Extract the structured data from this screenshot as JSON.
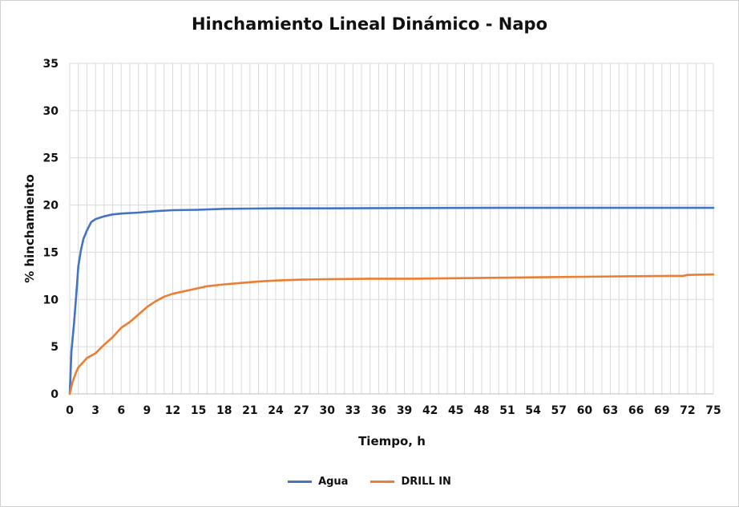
{
  "chart_data": {
    "type": "line",
    "title": "Hinchamiento Lineal Dinámico - Napo",
    "xlabel": "Tiempo, h",
    "ylabel": "% hinchamiento",
    "xlim": [
      0,
      75
    ],
    "ylim": [
      0,
      35
    ],
    "x_ticks": [
      "0",
      "3",
      "6",
      "9",
      "12",
      "15",
      "18",
      "21",
      "24",
      "27",
      "30",
      "33",
      "36",
      "39",
      "42",
      "45",
      "48",
      "51",
      "54",
      "57",
      "60",
      "63",
      "66",
      "69",
      "72",
      "75"
    ],
    "y_ticks": [
      "0",
      "5",
      "10",
      "15",
      "20",
      "25",
      "30",
      "35"
    ],
    "grid": true,
    "legend_position": "bottom",
    "series": [
      {
        "name": "Agua",
        "color": "#4472C4",
        "x": [
          0,
          0.2,
          0.5,
          0.8,
          1.0,
          1.3,
          1.6,
          2.0,
          2.5,
          3,
          4,
          5,
          6,
          8,
          10,
          12,
          15,
          18,
          21,
          24,
          30,
          40,
          50,
          60,
          70,
          75
        ],
        "y": [
          0,
          4.5,
          7.5,
          11,
          13.5,
          15.2,
          16.4,
          17.3,
          18.2,
          18.5,
          18.8,
          19.0,
          19.1,
          19.2,
          19.35,
          19.45,
          19.5,
          19.6,
          19.62,
          19.65,
          19.65,
          19.68,
          19.7,
          19.7,
          19.7,
          19.7
        ]
      },
      {
        "name": "DRILL IN",
        "color": "#ED7D31",
        "x": [
          0,
          0.3,
          0.7,
          1,
          1.5,
          2,
          3,
          4,
          5,
          6,
          7,
          8,
          9,
          10,
          11,
          12,
          14,
          16,
          18,
          20,
          22,
          24,
          27,
          30,
          35,
          40,
          45,
          50,
          55,
          60,
          65,
          70,
          71.5,
          72,
          75
        ],
        "y": [
          0,
          1.2,
          2.2,
          2.8,
          3.3,
          3.8,
          4.3,
          5.2,
          6.0,
          7.0,
          7.6,
          8.4,
          9.2,
          9.8,
          10.3,
          10.6,
          11.0,
          11.4,
          11.6,
          11.75,
          11.9,
          12.0,
          12.1,
          12.15,
          12.2,
          12.2,
          12.25,
          12.3,
          12.35,
          12.4,
          12.45,
          12.5,
          12.5,
          12.6,
          12.65
        ]
      }
    ]
  }
}
